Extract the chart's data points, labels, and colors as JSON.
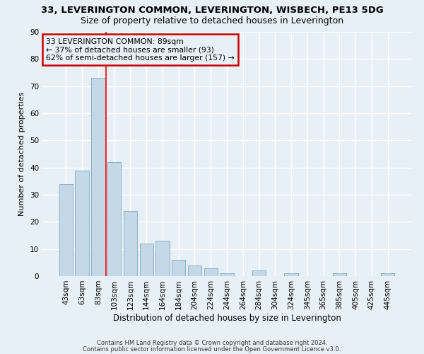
{
  "title1": "33, LEVERINGTON COMMON, LEVERINGTON, WISBECH, PE13 5DG",
  "title2": "Size of property relative to detached houses in Leverington",
  "xlabel": "Distribution of detached houses by size in Leverington",
  "ylabel": "Number of detached properties",
  "categories": [
    "43sqm",
    "63sqm",
    "83sqm",
    "103sqm",
    "123sqm",
    "144sqm",
    "164sqm",
    "184sqm",
    "204sqm",
    "224sqm",
    "244sqm",
    "264sqm",
    "284sqm",
    "304sqm",
    "324sqm",
    "345sqm",
    "365sqm",
    "385sqm",
    "405sqm",
    "425sqm",
    "445sqm"
  ],
  "values": [
    34,
    39,
    73,
    42,
    24,
    12,
    13,
    6,
    4,
    3,
    1,
    0,
    2,
    0,
    1,
    0,
    0,
    1,
    0,
    0,
    1
  ],
  "bar_color": "#c5d8e8",
  "bar_edge_color": "#7aaabf",
  "bg_color": "#e8f0f7",
  "grid_color": "#ffffff",
  "annotation_text": "33 LEVERINGTON COMMON: 89sqm\n← 37% of detached houses are smaller (93)\n62% of semi-detached houses are larger (157) →",
  "annotation_box_color": "#cc0000",
  "ylim": [
    0,
    90
  ],
  "yticks": [
    0,
    10,
    20,
    30,
    40,
    50,
    60,
    70,
    80,
    90
  ],
  "footnote1": "Contains HM Land Registry data © Crown copyright and database right 2024.",
  "footnote2": "Contains public sector information licensed under the Open Government Licence v3.0.",
  "title1_fontsize": 9.5,
  "title2_fontsize": 9,
  "tick_fontsize": 7.5,
  "ylabel_fontsize": 8,
  "xlabel_fontsize": 8.5,
  "annot_fontsize": 7.8,
  "footnote_fontsize": 6
}
